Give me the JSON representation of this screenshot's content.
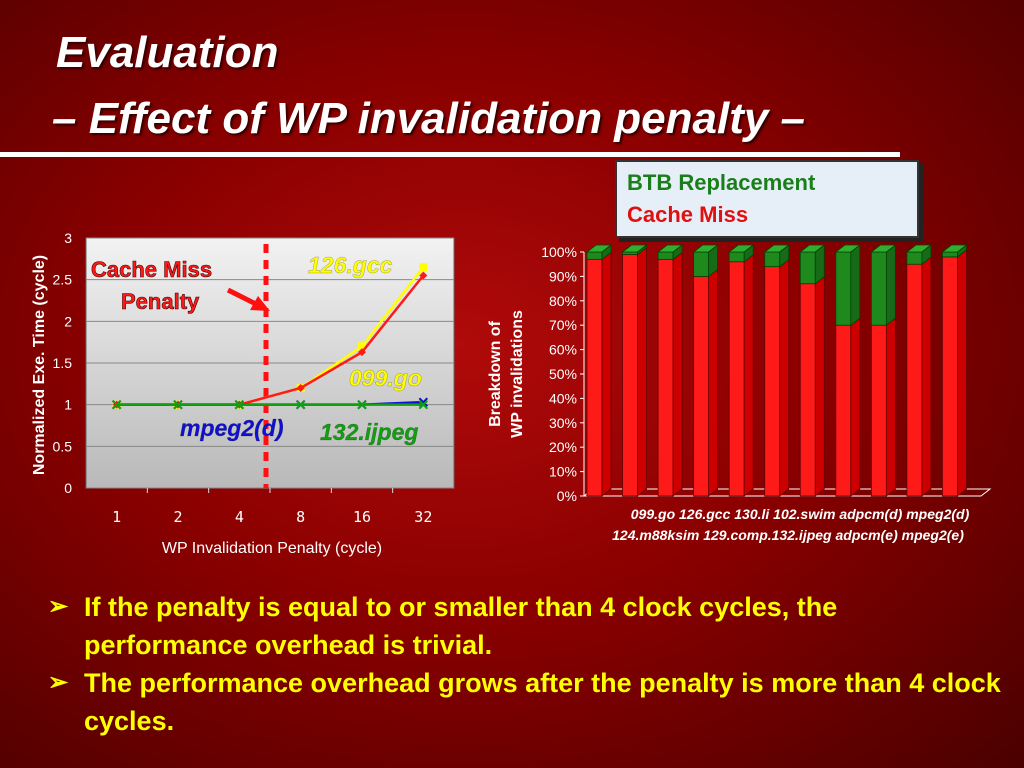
{
  "slide": {
    "title_line1": "Evaluation",
    "title_line2": "– Effect of WP invalidation penalty –",
    "legend": {
      "green_label": "BTB Replacement",
      "red_label": "Cache Miss",
      "green_color": "#1e8a1e",
      "red_color": "#ff1a1a"
    },
    "bullets": [
      "If the penalty is equal to or smaller than 4 clock cycles, the performance overhead is trivial.",
      "The performance overhead grows after the penalty is more than 4 clock cycles."
    ],
    "bullet_marker": "➢"
  },
  "chart_data": [
    {
      "type": "line",
      "xlabel": "WP Invalidation Penalty (cycle)",
      "ylabel": "Normalized Exe. Time (cycle)",
      "categories": [
        "1",
        "2",
        "4",
        "8",
        "16",
        "32"
      ],
      "ylim": [
        0,
        3
      ],
      "yticks": [
        "0",
        "0.5",
        "1",
        "1.5",
        "2",
        "2.5",
        "3"
      ],
      "grid": true,
      "series": [
        {
          "name": "126.gcc",
          "color": "#ffff00",
          "label_color": "#ffff00",
          "values": [
            1.0,
            1.0,
            1.0,
            1.2,
            1.7,
            2.65
          ]
        },
        {
          "name": "099.go",
          "color": "#ff1a1a",
          "label_color": "#ffff00",
          "values": [
            1.0,
            1.0,
            1.0,
            1.2,
            1.63,
            2.55
          ]
        },
        {
          "name": "mpeg2(d)",
          "color": "#1010d0",
          "label_color": "#1010d0",
          "values": [
            1.0,
            1.0,
            1.0,
            1.0,
            1.0,
            1.03
          ]
        },
        {
          "name": "132.ijpeg",
          "color": "#10a010",
          "label_color": "#10a010",
          "values": [
            1.0,
            1.0,
            1.0,
            1.0,
            1.0,
            1.0
          ]
        }
      ],
      "annotation": {
        "line1": "Cache Miss",
        "line2": "Penalty"
      }
    },
    {
      "type": "bar",
      "stacked": true,
      "ylabel_line1": "Breakdown of",
      "ylabel_line2": "WP invalidations",
      "categories": [
        "099.go",
        "124.m88ksim",
        "126.gcc",
        "129.comp.",
        "130.li",
        "132.ijpeg",
        "102.swim",
        "adpcm(e)",
        "adpcm(d)",
        "mpeg2(e)",
        "mpeg2(d)"
      ],
      "category_rows": [
        "099.go    126.gcc    130.li    102.swim  adpcm(d) mpeg2(d)",
        "124.m88ksim 129.comp.132.ijpeg adpcm(e) mpeg2(e)"
      ],
      "ylim": [
        0,
        100
      ],
      "yticks": [
        "0%",
        "10%",
        "20%",
        "30%",
        "40%",
        "50%",
        "60%",
        "70%",
        "80%",
        "90%",
        "100%"
      ],
      "series": [
        {
          "name": "Cache Miss",
          "values": [
            97,
            99,
            97,
            90,
            96,
            94,
            87,
            70,
            70,
            95,
            98
          ]
        },
        {
          "name": "BTB Replacement",
          "values": [
            3,
            1,
            3,
            10,
            4,
            6,
            13,
            30,
            30,
            5,
            2
          ]
        }
      ]
    }
  ]
}
